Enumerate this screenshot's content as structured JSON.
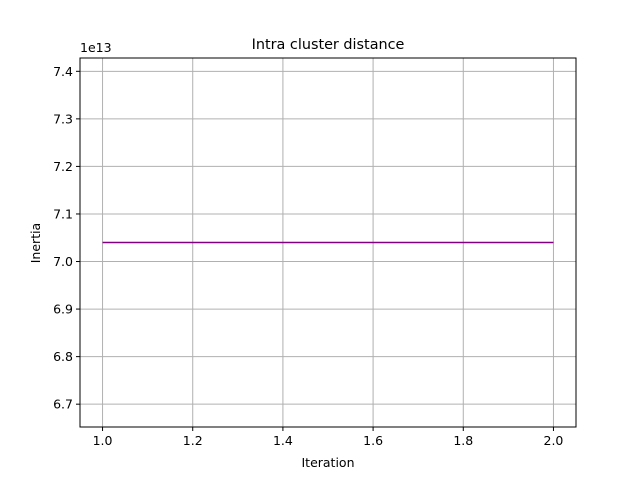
{
  "chart_data": {
    "type": "line",
    "title": "Intra cluster distance",
    "xlabel": "Iteration",
    "ylabel": "Inertia",
    "y_offset_label": "1e13",
    "xlim": [
      0.95,
      2.05
    ],
    "ylim": [
      6.652,
      7.428
    ],
    "x_ticks": [
      1.0,
      1.2,
      1.4,
      1.6,
      1.8,
      2.0
    ],
    "x_tick_labels": [
      "1.0",
      "1.2",
      "1.4",
      "1.6",
      "1.8",
      "2.0"
    ],
    "y_ticks": [
      6.7,
      6.8,
      6.9,
      7.0,
      7.1,
      7.2,
      7.3,
      7.4
    ],
    "y_tick_labels": [
      "6.7",
      "6.8",
      "6.9",
      "7.0",
      "7.1",
      "7.2",
      "7.3",
      "7.4"
    ],
    "grid": true,
    "series": [
      {
        "x": [
          1.0,
          2.0
        ],
        "y": [
          7.04,
          7.04
        ],
        "color": "#800080"
      }
    ]
  }
}
